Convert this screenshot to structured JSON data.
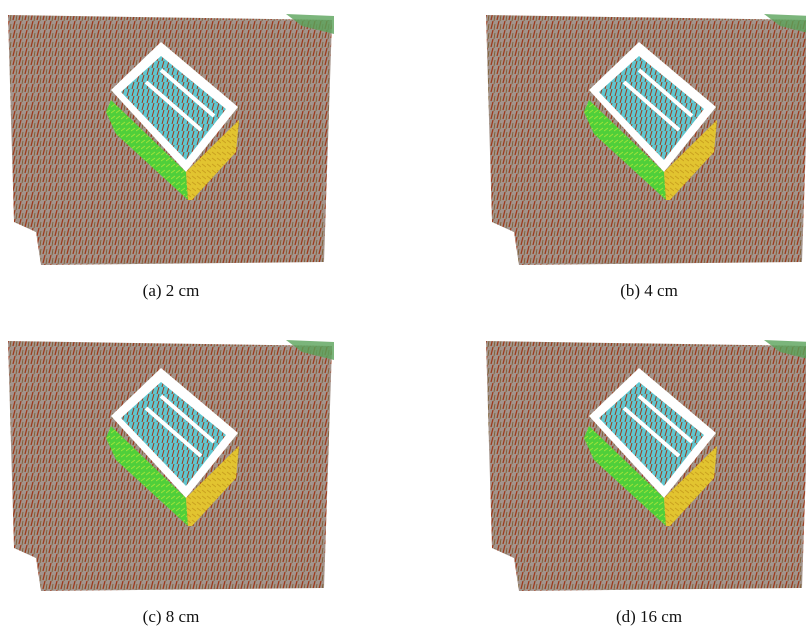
{
  "figure": {
    "panels": [
      {
        "caption": "(a) 2 cm"
      },
      {
        "caption": "(b) 4 cm"
      },
      {
        "caption": "(c) 8 cm"
      },
      {
        "caption": "(d) 16 cm"
      }
    ]
  }
}
